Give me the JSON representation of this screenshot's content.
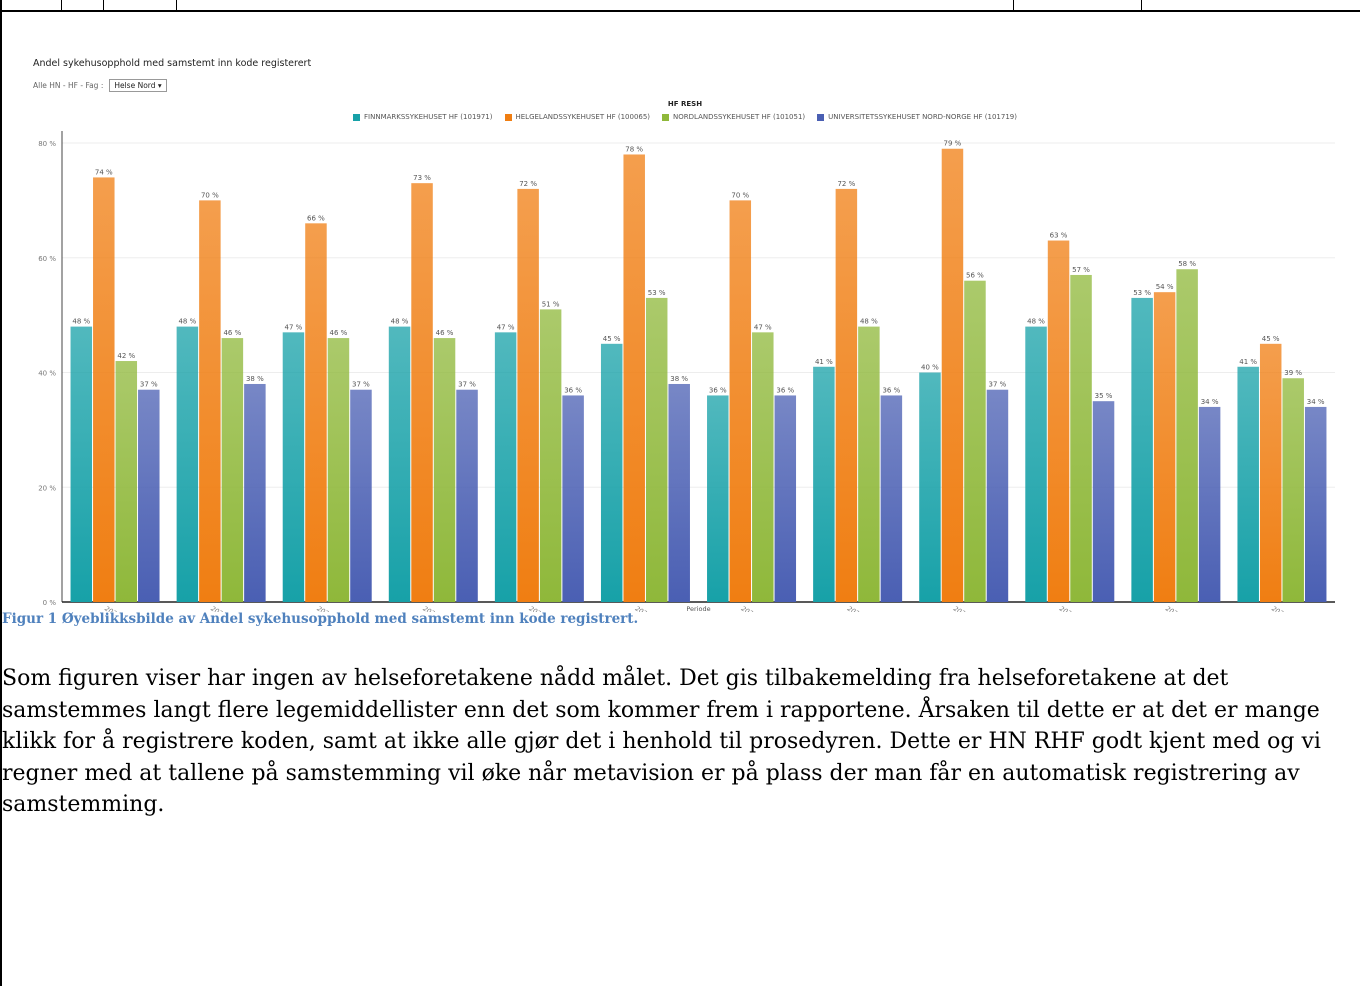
{
  "header": {
    "cell_text": ""
  },
  "figure": {
    "title": "Andel sykehusopphold med samstemt inn kode registerert",
    "filter_label": "Alle HN - HF - Fag :",
    "filter_value": "Helse Nord",
    "legend_title": "HF RESH",
    "xlabel": "Periode"
  },
  "chart_data": {
    "type": "bar",
    "title": "Andel sykehusopphold med samstemt inn kode registerert",
    "xlabel": "Periode",
    "ylabel": "",
    "ylim": [
      0,
      80
    ],
    "yticks": [
      "0 %",
      "20 %",
      "40 %",
      "60 %",
      "80 %"
    ],
    "legend_title": "HF RESH",
    "legend_position": "top-center",
    "grid": true,
    "categories": [
      "202001",
      "202002",
      "202003",
      "202004",
      "202005",
      "202006",
      "202007",
      "202008",
      "202011",
      "202012",
      "202101",
      "202102"
    ],
    "series": [
      {
        "name": "FINNMARKSSYKEHUSET HF (101971)",
        "color": "#17a1a8",
        "values": [
          48,
          48,
          47,
          48,
          47,
          45,
          36,
          41,
          40,
          48,
          53,
          41
        ],
        "labels": [
          "48 %",
          "48 %",
          "47 %",
          "48 %",
          "47 %",
          "45 %",
          "36 %",
          "41 %",
          "40 %",
          "48 %",
          "53 %",
          "41 %"
        ]
      },
      {
        "name": "HELGELANDSSYKEHUSET HF (100065)",
        "color": "#f07e12",
        "values": [
          74,
          70,
          66,
          73,
          72,
          78,
          70,
          72,
          79,
          63,
          54,
          45
        ],
        "labels": [
          "74 %",
          "70 %",
          "66 %",
          "73 %",
          "72 %",
          "78 %",
          "70 %",
          "72 %",
          "79 %",
          "63 %",
          "54 %",
          "45 %"
        ]
      },
      {
        "name": "NORDLANDSSYKEHUSET HF (101051)",
        "color": "#8fb83a",
        "values": [
          42,
          46,
          46,
          46,
          51,
          53,
          47,
          48,
          56,
          57,
          58,
          39
        ],
        "labels": [
          "42 %",
          "46 %",
          "46 %",
          "46 %",
          "51 %",
          "53 %",
          "47 %",
          "48 %",
          "56 %",
          "57 %",
          "58 %",
          "39 %"
        ]
      },
      {
        "name": "UNIVERSITETSSYKEHUSET NORD-NORGE HF (101719)",
        "color": "#4a5fb3",
        "values": [
          37,
          38,
          37,
          37,
          36,
          38,
          36,
          36,
          37,
          35,
          34,
          34
        ],
        "labels": [
          "37 %",
          "38 %",
          "37 %",
          "37 %",
          "36 %",
          "38 %",
          "36 %",
          "36 %",
          "37 %",
          "35 %",
          "34 %",
          "34 %"
        ]
      }
    ]
  },
  "caption": "Figur 1 Øyeblikksbilde av Andel sykehusopphold med samstemt inn kode registrert.",
  "body_paragraph": "Som figuren viser har ingen av helseforetakene nådd målet. Det gis tilbakemelding fra helseforetakene at det samstemmes langt flere legemiddellister enn det som kommer frem i rapportene. Årsaken til dette er at det er mange klikk for å registrere koden, samt at ikke alle gjør det i henhold til prosedyren. Dette er HN RHF godt kjent med og vi regner med at tallene på samstemming vil øke når metavision er på plass der man får en automatisk registrering av samstemming."
}
